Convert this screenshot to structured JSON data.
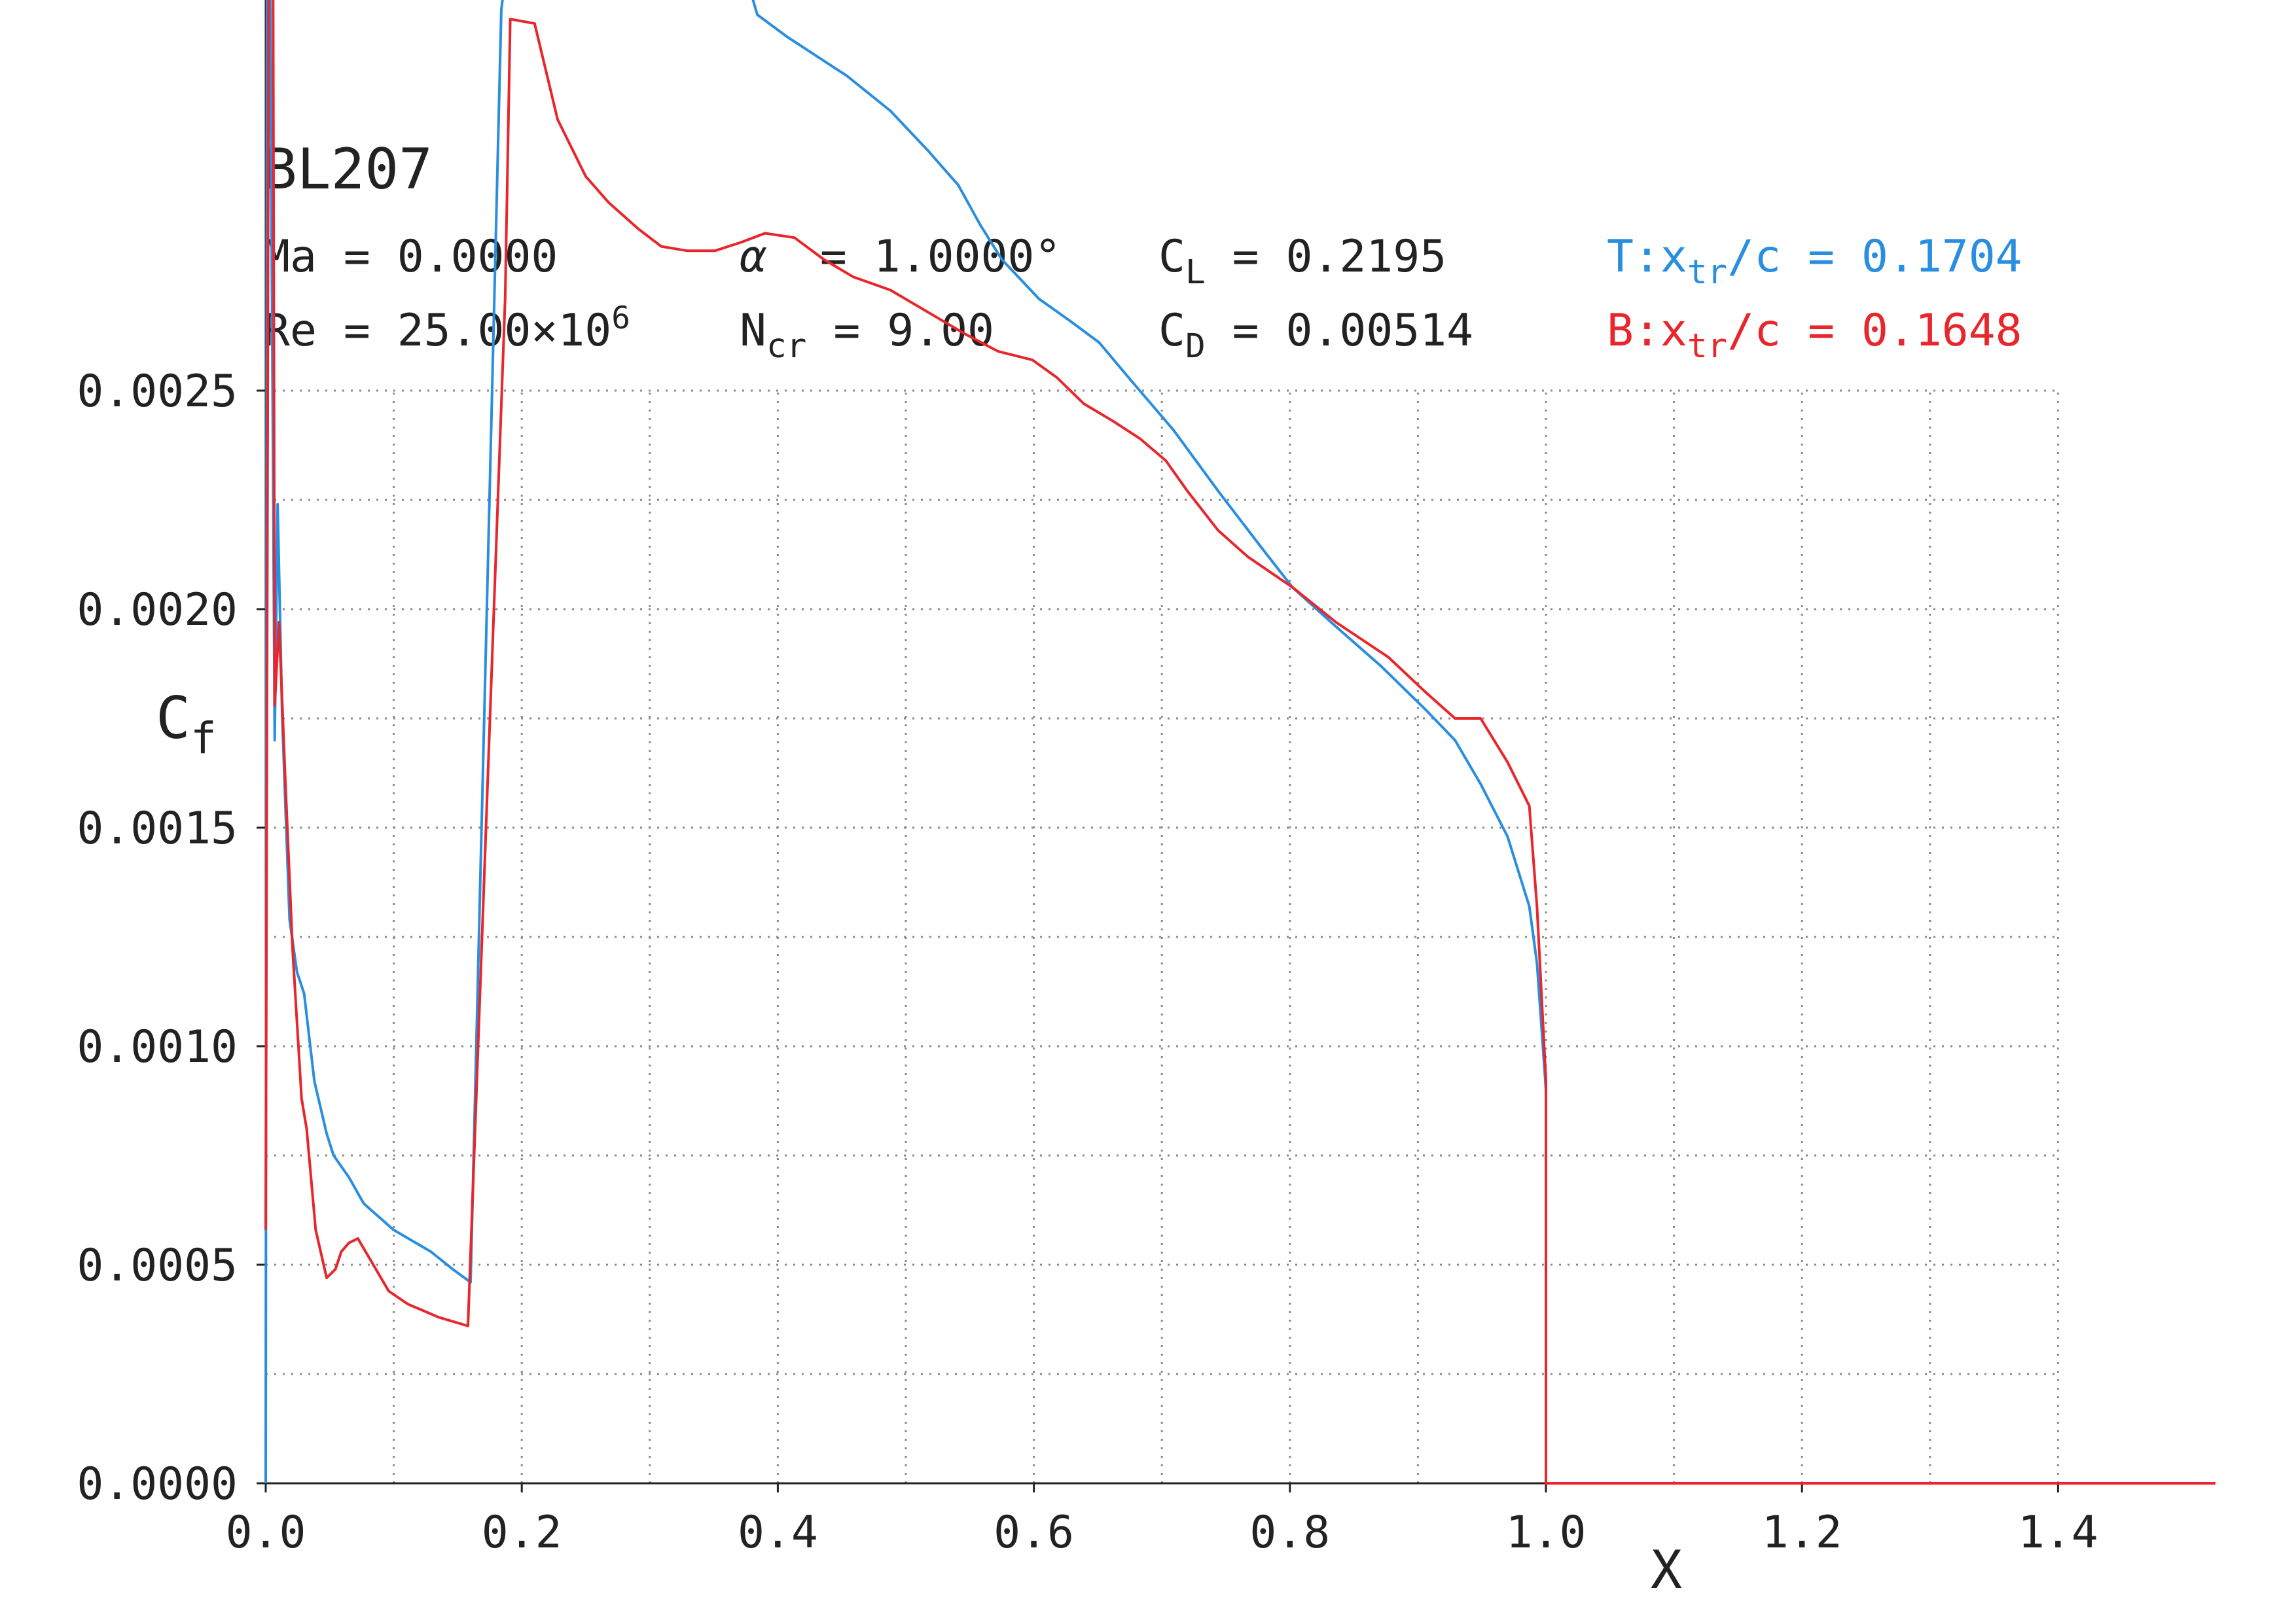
{
  "chart_data": {
    "type": "line",
    "title": "BL207",
    "annotations": [
      {
        "parts": [
          {
            "text": "Ma = 0.0000"
          }
        ]
      },
      {
        "parts": [
          {
            "text": "α",
            "italic": true
          },
          {
            "text": "  = 1.0000°"
          }
        ]
      },
      {
        "parts": [
          {
            "text": "C"
          },
          {
            "text": "L",
            "sub": true
          },
          {
            "text": " = 0.2195"
          }
        ]
      },
      {
        "color": "#2a8ee0",
        "parts": [
          {
            "text": "T:x"
          },
          {
            "text": "tr",
            "sub": true
          },
          {
            "text": "/c = 0.1704"
          }
        ]
      },
      {
        "parts": [
          {
            "text": "Re = 25.00×10"
          },
          {
            "text": "6",
            "sup": true
          }
        ]
      },
      {
        "parts": [
          {
            "text": "N"
          },
          {
            "text": "cr",
            "sub": true
          },
          {
            "text": " = 9.00"
          }
        ]
      },
      {
        "parts": [
          {
            "text": "C"
          },
          {
            "text": "D",
            "sub": true
          },
          {
            "text": " = 0.00514"
          }
        ]
      },
      {
        "color": "#e8262b",
        "parts": [
          {
            "text": "B:x"
          },
          {
            "text": "tr",
            "sub": true
          },
          {
            "text": "/c = 0.1648"
          }
        ]
      }
    ],
    "x_label": "X",
    "y_label_parts": [
      {
        "text": "C"
      },
      {
        "text": "f",
        "sub": true
      }
    ],
    "xlim": [
      0,
      1.523
    ],
    "ylim": [
      0,
      0.0034
    ],
    "xticks": [
      {
        "value": 0,
        "label": "0.0"
      },
      0.2,
      0.4,
      0.6,
      0.8,
      {
        "value": 1,
        "label": "1.0"
      },
      1.2,
      1.4
    ],
    "yticks": [
      {
        "value": 0,
        "label": "0.0000"
      },
      {
        "value": 0.0005,
        "label": "0.0005"
      },
      {
        "value": 0.001,
        "label": "0.0010"
      },
      {
        "value": 0.0015,
        "label": "0.0015"
      },
      {
        "value": 0.002,
        "label": "0.0020"
      },
      {
        "value": 0.0025,
        "label": "0.0025"
      }
    ],
    "grid": true,
    "xgrid": [
      0.1,
      0.2,
      0.3,
      0.4,
      0.5,
      0.6,
      0.7,
      0.8,
      0.9,
      1.0,
      1.1,
      1.2,
      1.3,
      1.4
    ],
    "ygrid": [
      0.00025,
      0.0005,
      0.00075,
      0.001,
      0.00125,
      0.0015,
      0.00175,
      0.002,
      0.00225,
      0.0025
    ],
    "series": [
      {
        "color": "#2a8ee0",
        "x": [
          0,
          0.001,
          0.0035,
          0.007,
          0.0093,
          0.0128,
          0.0186,
          0.0244,
          0.03,
          0.038,
          0.0476,
          0.053,
          0.065,
          0.0766,
          0.0998,
          0.129,
          0.146,
          0.16,
          0.184,
          0.193,
          0.36,
          0.384,
          0.407,
          0.454,
          0.488,
          0.517,
          0.541,
          0.558,
          0.575,
          0.604,
          0.628,
          0.651,
          0.674,
          0.709,
          0.744,
          0.778,
          0.802,
          0.836,
          0.871,
          0.906,
          0.929,
          0.949,
          0.97,
          0.987,
          0.993,
          1.0
        ],
        "values": [
          0,
          0.0036,
          0.0034,
          0.0017,
          0.00224,
          0.00176,
          0.00129,
          0.00117,
          0.00112,
          0.00092,
          0.0008,
          0.00075,
          0.0007,
          0.00064,
          0.00058,
          0.00053,
          0.00049,
          0.00046,
          0.00337,
          0.0036,
          0.0036,
          0.00336,
          0.00331,
          0.00322,
          0.00314,
          0.00305,
          0.00297,
          0.00288,
          0.0028,
          0.00271,
          0.00266,
          0.00261,
          0.00253,
          0.00241,
          0.00227,
          0.00214,
          0.00205,
          0.00196,
          0.00187,
          0.00177,
          0.0017,
          0.0016,
          0.00148,
          0.00132,
          0.00119,
          0.0009
        ]
      },
      {
        "color": "#e8262b",
        "x": [
          0,
          0.0023,
          0.003,
          0.0058,
          0.007,
          0.0104,
          0.015,
          0.021,
          0.028,
          0.032,
          0.039,
          0.0476,
          0.0545,
          0.059,
          0.065,
          0.072,
          0.082,
          0.096,
          0.111,
          0.135,
          0.158,
          0.187,
          0.191,
          0.21,
          0.228,
          0.25,
          0.268,
          0.291,
          0.309,
          0.329,
          0.351,
          0.372,
          0.39,
          0.413,
          0.436,
          0.459,
          0.488,
          0.517,
          0.546,
          0.572,
          0.599,
          0.618,
          0.639,
          0.662,
          0.683,
          0.703,
          0.72,
          0.744,
          0.767,
          0.802,
          0.836,
          0.877,
          0.906,
          0.929,
          0.949,
          0.97,
          0.987,
          0.993,
          1.0,
          1.0,
          1.523
        ],
        "values": [
          0.00058,
          0.0034,
          0.0036,
          0.0034,
          0.00178,
          0.00197,
          0.00163,
          0.00122,
          0.00088,
          0.00081,
          0.00058,
          0.00047,
          0.00049,
          0.00053,
          0.00055,
          0.00056,
          0.00051,
          0.00044,
          0.00041,
          0.00038,
          0.00036,
          0.00271,
          0.00335,
          0.00334,
          0.00312,
          0.00299,
          0.00293,
          0.00287,
          0.00283,
          0.00282,
          0.00282,
          0.00284,
          0.00286,
          0.00285,
          0.0028,
          0.00276,
          0.00273,
          0.00268,
          0.00263,
          0.00259,
          0.00257,
          0.00253,
          0.00247,
          0.00243,
          0.00239,
          0.00234,
          0.00227,
          0.00218,
          0.00212,
          0.00205,
          0.00197,
          0.00189,
          0.00181,
          0.00175,
          0.00175,
          0.00165,
          0.00155,
          0.00132,
          0.00092,
          0,
          0
        ]
      }
    ]
  }
}
